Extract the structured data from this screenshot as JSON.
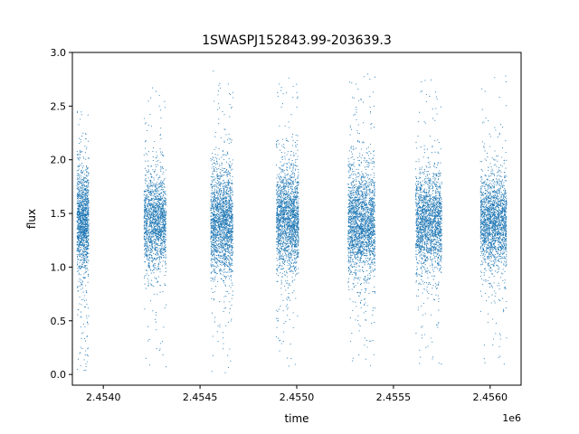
{
  "chart_data": {
    "type": "scatter",
    "title": "1SWASPJ152843.99-203639.3",
    "xlabel": "time",
    "ylabel": "flux",
    "x_offset_label": "1e6",
    "x_axis_scale": 1000000,
    "xlim": [
      2453840,
      2456160
    ],
    "ylim": [
      -0.1,
      3.0
    ],
    "x_ticks": [
      2454000,
      2454500,
      2455000,
      2455500,
      2456000
    ],
    "x_tick_labels": [
      "2.4540",
      "2.4545",
      "2.4550",
      "2.4555",
      "2.4560"
    ],
    "y_ticks": [
      0.0,
      0.5,
      1.0,
      1.5,
      2.0,
      2.5,
      3.0
    ],
    "y_tick_labels": [
      "0.0",
      "0.5",
      "1.0",
      "1.5",
      "2.0",
      "2.5",
      "3.0"
    ],
    "grid": false,
    "legend": "none",
    "point_color": "#1f77b4",
    "series": [
      {
        "seasons": [
          {
            "x_start": 2453864,
            "x_end": 2453925,
            "center": 1.45,
            "spread": 0.28,
            "min": 0.03,
            "max": 2.45,
            "n_points": 1400
          },
          {
            "x_start": 2454210,
            "x_end": 2454325,
            "center": 1.42,
            "spread": 0.26,
            "min": 0.05,
            "max": 2.67,
            "n_points": 1600
          },
          {
            "x_start": 2454555,
            "x_end": 2454670,
            "center": 1.42,
            "spread": 0.3,
            "min": 0.0,
            "max": 2.86,
            "n_points": 1900
          },
          {
            "x_start": 2454895,
            "x_end": 2455010,
            "center": 1.45,
            "spread": 0.3,
            "min": 0.05,
            "max": 2.8,
            "n_points": 1900
          },
          {
            "x_start": 2455265,
            "x_end": 2455405,
            "center": 1.4,
            "spread": 0.3,
            "min": 0.03,
            "max": 2.8,
            "n_points": 2200
          },
          {
            "x_start": 2455615,
            "x_end": 2455750,
            "center": 1.42,
            "spread": 0.28,
            "min": 0.08,
            "max": 2.75,
            "n_points": 1900
          },
          {
            "x_start": 2455950,
            "x_end": 2456085,
            "center": 1.42,
            "spread": 0.27,
            "min": 0.07,
            "max": 2.78,
            "n_points": 1900
          }
        ]
      }
    ]
  }
}
